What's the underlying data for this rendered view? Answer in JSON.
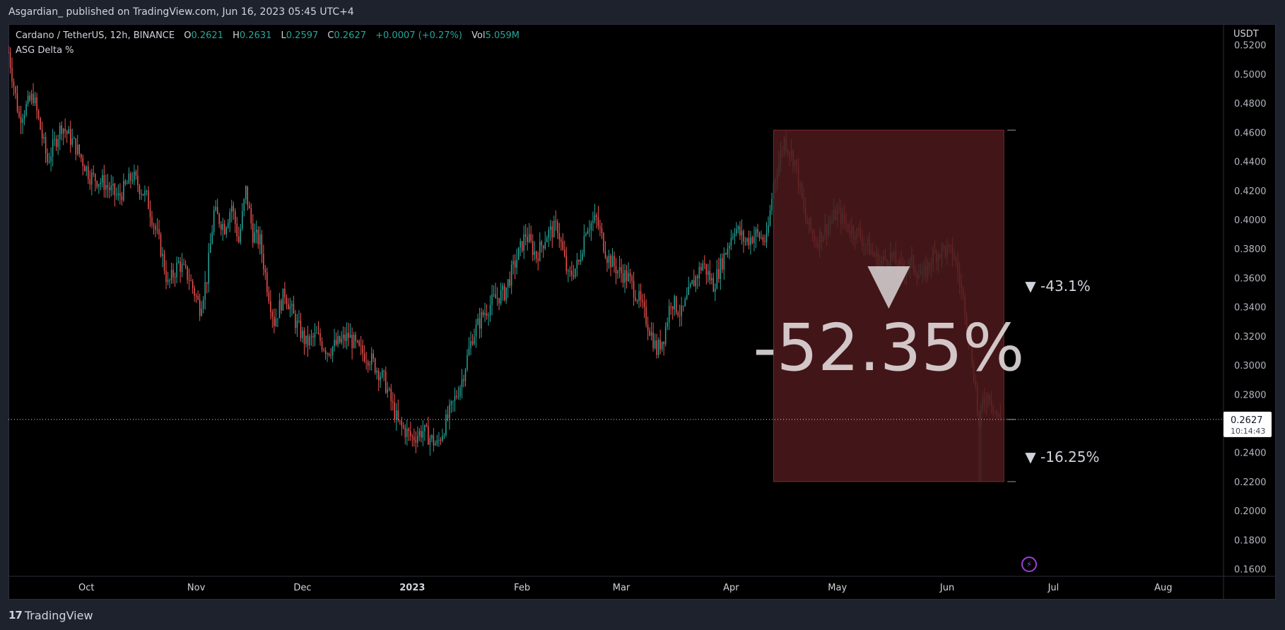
{
  "header": {
    "published": "Asgardian_ published on TradingView.com, Jun 16, 2023 05:45 UTC+4"
  },
  "legend": {
    "symbol": "Cardano / TetherUS, 12h, BINANCE",
    "o_label": "O",
    "o_value": "0.2621",
    "h_label": "H",
    "h_value": "0.2631",
    "l_label": "L",
    "l_value": "0.2597",
    "c_label": "C",
    "c_value": "0.2627",
    "change": "+0.0007 (+0.27%)",
    "vol_label": "Vol",
    "vol_value": "5.059M"
  },
  "indicator": {
    "name": "ASG Delta %"
  },
  "price_scale": {
    "currency": "USDT",
    "ticks": [
      "0.5200",
      "0.5000",
      "0.4800",
      "0.4600",
      "0.4400",
      "0.4200",
      "0.4000",
      "0.3800",
      "0.3600",
      "0.3400",
      "0.3200",
      "0.3000",
      "0.2800",
      "0.2600",
      "0.2400",
      "0.2200",
      "0.2000",
      "0.1800",
      "0.1600"
    ],
    "last_price": "0.2627",
    "countdown": "10:14:43"
  },
  "time_scale": {
    "labels": [
      {
        "text": "Oct",
        "bold": false
      },
      {
        "text": "Nov",
        "bold": false
      },
      {
        "text": "Dec",
        "bold": false
      },
      {
        "text": "2023",
        "bold": true
      },
      {
        "text": "Feb",
        "bold": false
      },
      {
        "text": "Mar",
        "bold": false
      },
      {
        "text": "Apr",
        "bold": false
      },
      {
        "text": "May",
        "bold": false
      },
      {
        "text": "Jun",
        "bold": false
      },
      {
        "text": "Jul",
        "bold": false
      },
      {
        "text": "Aug",
        "bold": false
      }
    ]
  },
  "annotations": {
    "delta_total": "-52.35%",
    "delta_upper": "▼ -43.1%",
    "delta_lower": "▼ -16.25%"
  },
  "footer": {
    "brand": "TradingView",
    "brand_mark": "17"
  },
  "colors": {
    "up": "#26a69a",
    "down": "#ef5350",
    "box_fill": "#4d1a1c",
    "background": "#000000",
    "panel": "#1e222d"
  },
  "chart_data": {
    "type": "candlestick",
    "title": "Cardano / TetherUS, 12h, BINANCE",
    "ylabel": "USDT",
    "ylim": [
      0.16,
      0.52
    ],
    "x_range": [
      "2022-09-09",
      "2023-08-18"
    ],
    "close_path": [
      [
        "2022-09-09",
        0.515
      ],
      [
        "2022-09-12",
        0.47
      ],
      [
        "2022-09-16",
        0.485
      ],
      [
        "2022-09-20",
        0.44
      ],
      [
        "2022-09-24",
        0.465
      ],
      [
        "2022-09-28",
        0.45
      ],
      [
        "2022-10-02",
        0.43
      ],
      [
        "2022-10-06",
        0.425
      ],
      [
        "2022-10-10",
        0.415
      ],
      [
        "2022-10-14",
        0.43
      ],
      [
        "2022-10-18",
        0.415
      ],
      [
        "2022-10-22",
        0.38
      ],
      [
        "2022-10-24",
        0.355
      ],
      [
        "2022-10-27",
        0.37
      ],
      [
        "2022-10-30",
        0.36
      ],
      [
        "2022-11-02",
        0.34
      ],
      [
        "2022-11-04",
        0.36
      ],
      [
        "2022-11-06",
        0.405
      ],
      [
        "2022-11-09",
        0.395
      ],
      [
        "2022-11-11",
        0.41
      ],
      [
        "2022-11-13",
        0.385
      ],
      [
        "2022-11-15",
        0.42
      ],
      [
        "2022-11-17",
        0.39
      ],
      [
        "2022-11-19",
        0.385
      ],
      [
        "2022-11-21",
        0.355
      ],
      [
        "2022-11-23",
        0.33
      ],
      [
        "2022-11-26",
        0.35
      ],
      [
        "2022-11-29",
        0.33
      ],
      [
        "2022-12-02",
        0.315
      ],
      [
        "2022-12-05",
        0.32
      ],
      [
        "2022-12-08",
        0.31
      ],
      [
        "2022-12-11",
        0.315
      ],
      [
        "2022-12-14",
        0.32
      ],
      [
        "2022-12-17",
        0.31
      ],
      [
        "2022-12-20",
        0.305
      ],
      [
        "2022-12-24",
        0.29
      ],
      [
        "2022-12-28",
        0.26
      ],
      [
        "2023-01-01",
        0.25
      ],
      [
        "2023-01-04",
        0.255
      ],
      [
        "2023-01-08",
        0.245
      ],
      [
        "2023-01-12",
        0.27
      ],
      [
        "2023-01-15",
        0.29
      ],
      [
        "2023-01-18",
        0.32
      ],
      [
        "2023-01-21",
        0.335
      ],
      [
        "2023-01-24",
        0.345
      ],
      [
        "2023-01-27",
        0.35
      ],
      [
        "2023-01-30",
        0.37
      ],
      [
        "2023-02-02",
        0.39
      ],
      [
        "2023-02-05",
        0.375
      ],
      [
        "2023-02-08",
        0.39
      ],
      [
        "2023-02-11",
        0.395
      ],
      [
        "2023-02-14",
        0.36
      ],
      [
        "2023-02-17",
        0.37
      ],
      [
        "2023-02-19",
        0.395
      ],
      [
        "2023-02-22",
        0.4
      ],
      [
        "2023-02-25",
        0.375
      ],
      [
        "2023-02-28",
        0.365
      ],
      [
        "2023-03-03",
        0.36
      ],
      [
        "2023-03-06",
        0.345
      ],
      [
        "2023-03-09",
        0.325
      ],
      [
        "2023-03-11",
        0.31
      ],
      [
        "2023-03-13",
        0.32
      ],
      [
        "2023-03-15",
        0.345
      ],
      [
        "2023-03-18",
        0.335
      ],
      [
        "2023-03-21",
        0.355
      ],
      [
        "2023-03-24",
        0.37
      ],
      [
        "2023-03-27",
        0.355
      ],
      [
        "2023-03-30",
        0.375
      ],
      [
        "2023-04-02",
        0.395
      ],
      [
        "2023-04-05",
        0.385
      ],
      [
        "2023-04-08",
        0.39
      ],
      [
        "2023-04-11",
        0.385
      ],
      [
        "2023-04-13",
        0.425
      ],
      [
        "2023-04-16",
        0.455
      ],
      [
        "2023-04-19",
        0.44
      ],
      [
        "2023-04-22",
        0.4
      ],
      [
        "2023-04-25",
        0.385
      ],
      [
        "2023-04-28",
        0.395
      ],
      [
        "2023-05-01",
        0.405
      ],
      [
        "2023-05-04",
        0.395
      ],
      [
        "2023-05-07",
        0.39
      ],
      [
        "2023-05-10",
        0.38
      ],
      [
        "2023-05-13",
        0.37
      ],
      [
        "2023-05-16",
        0.375
      ],
      [
        "2023-05-19",
        0.365
      ],
      [
        "2023-05-22",
        0.37
      ],
      [
        "2023-05-25",
        0.36
      ],
      [
        "2023-05-28",
        0.375
      ],
      [
        "2023-05-31",
        0.38
      ],
      [
        "2023-06-03",
        0.375
      ],
      [
        "2023-06-06",
        0.34
      ],
      [
        "2023-06-09",
        0.285
      ],
      [
        "2023-06-10",
        0.255
      ],
      [
        "2023-06-11",
        0.275
      ],
      [
        "2023-06-13",
        0.28
      ],
      [
        "2023-06-15",
        0.265
      ],
      [
        "2023-06-16",
        0.2627
      ]
    ],
    "last_price": 0.2627,
    "box": {
      "x_start": "2023-04-13",
      "x_end": "2023-06-17",
      "y_high": 0.4615,
      "y_low": 0.22,
      "label": "-52.35%"
    }
  }
}
